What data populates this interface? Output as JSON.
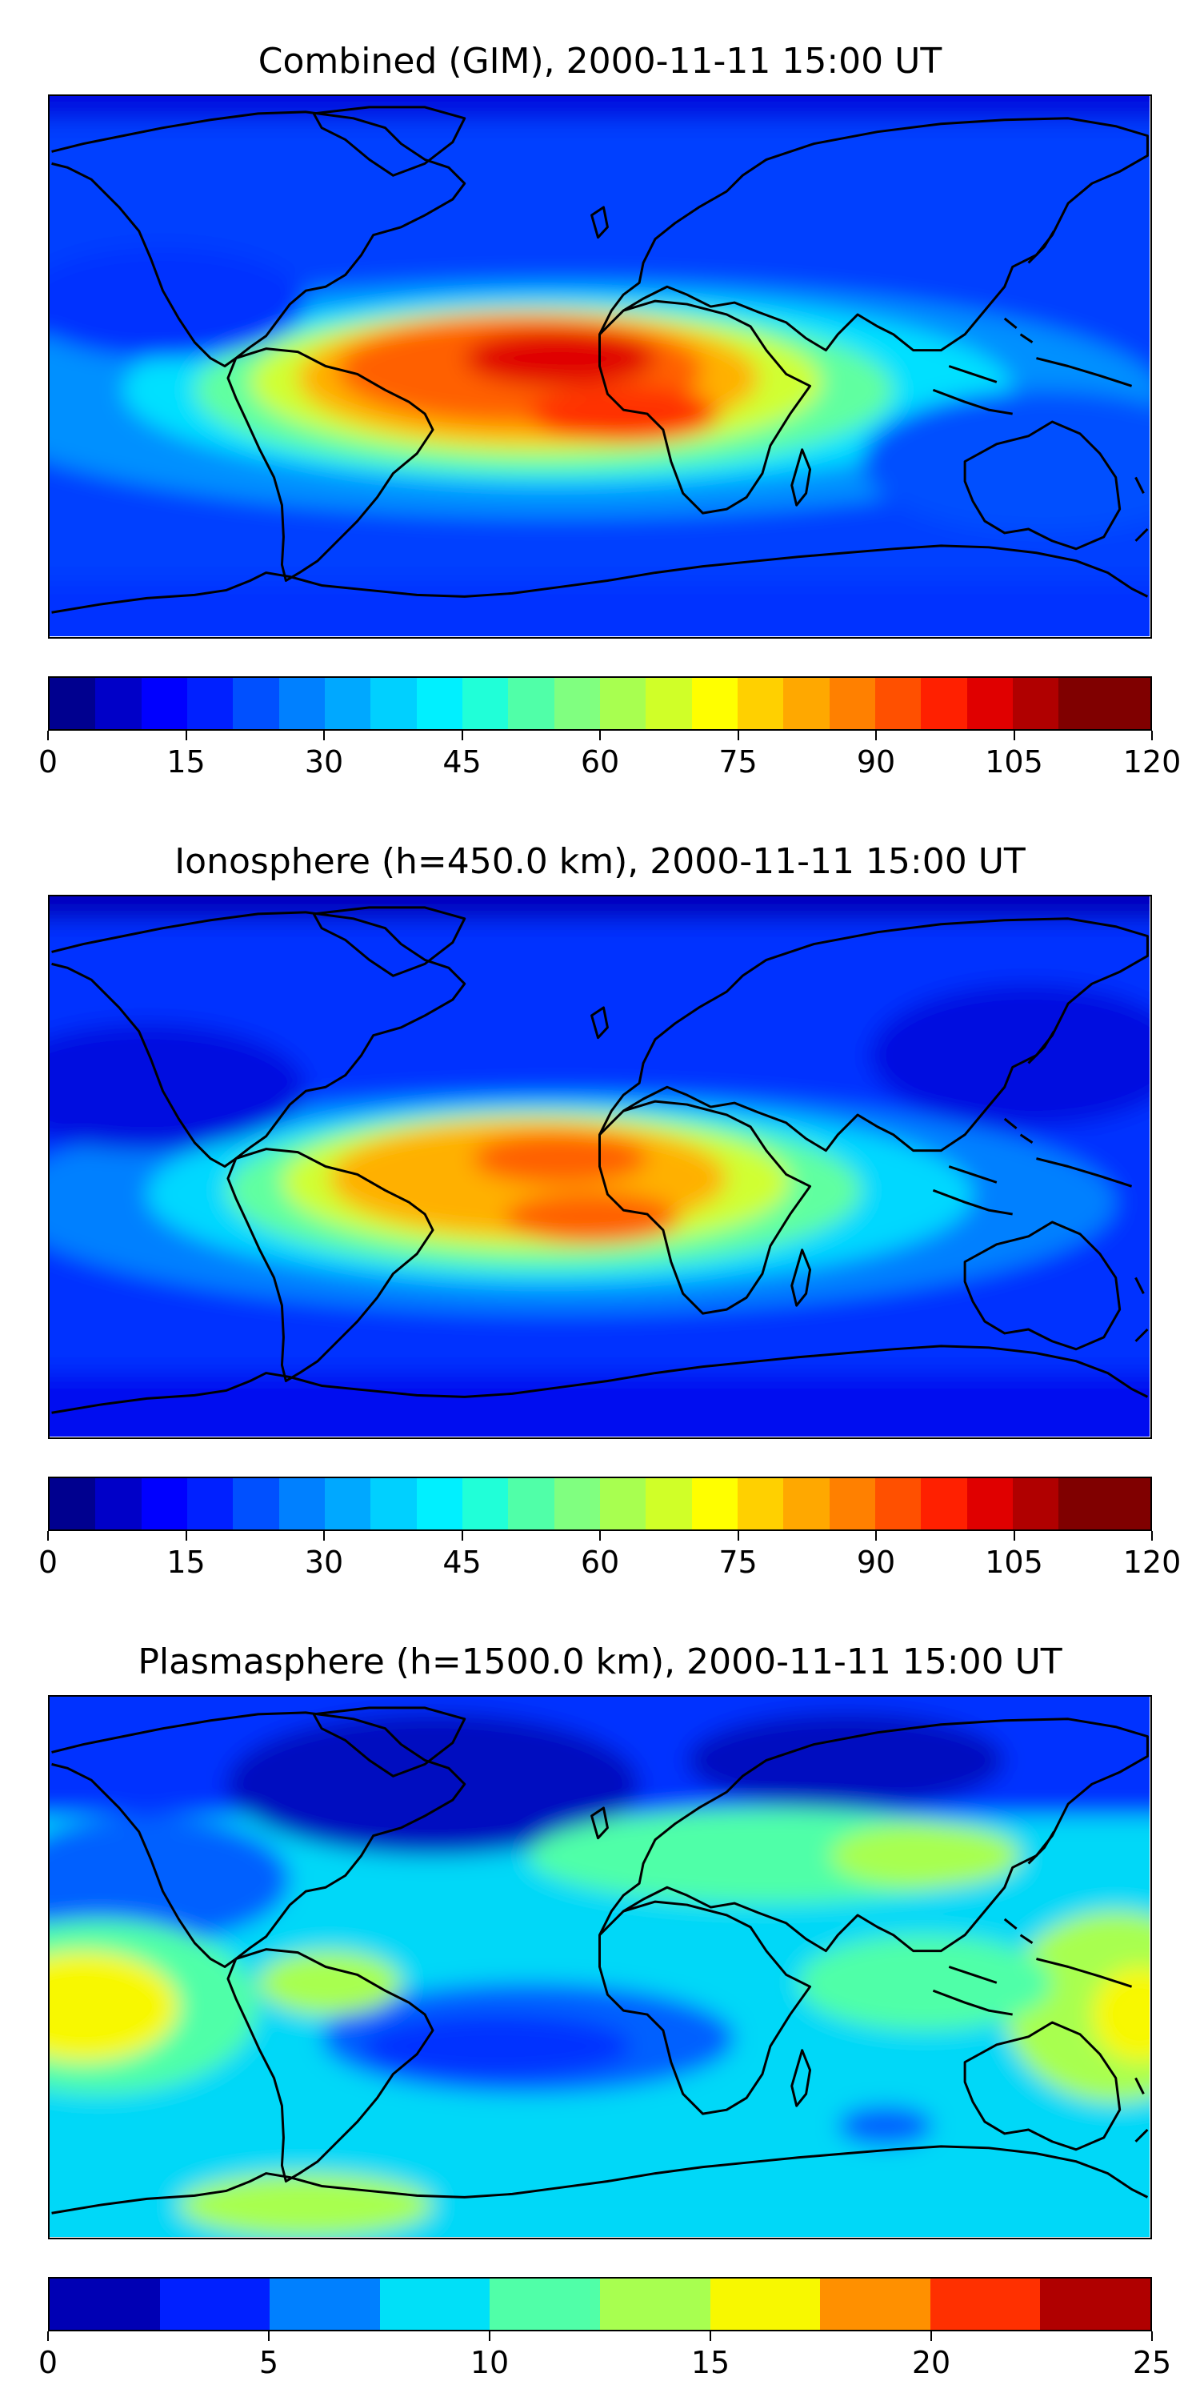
{
  "panels": [
    {
      "title": "Combined (GIM), 2000-11-11 15:00 UT",
      "colorbar": {
        "colors": [
          "#00008f",
          "#0000c8",
          "#0000ff",
          "#0020ff",
          "#0050ff",
          "#0080ff",
          "#00a8ff",
          "#00d0ff",
          "#00f0ff",
          "#20ffd8",
          "#50ffa8",
          "#80ff80",
          "#a8ff50",
          "#d0ff28",
          "#ffff00",
          "#ffd000",
          "#ffa800",
          "#ff8000",
          "#ff5000",
          "#ff2000",
          "#e00000",
          "#b00000",
          "#800000",
          "#800000"
        ],
        "ticks": [
          "0",
          "15",
          "30",
          "45",
          "60",
          "75",
          "90",
          "105",
          "120"
        ]
      }
    },
    {
      "title": "Ionosphere  (h=450.0 km), 2000-11-11 15:00 UT",
      "colorbar": {
        "colors": [
          "#00008f",
          "#0000c8",
          "#0000ff",
          "#0020ff",
          "#0050ff",
          "#0080ff",
          "#00a8ff",
          "#00d0ff",
          "#00f0ff",
          "#20ffd8",
          "#50ffa8",
          "#80ff80",
          "#a8ff50",
          "#d0ff28",
          "#ffff00",
          "#ffd000",
          "#ffa800",
          "#ff8000",
          "#ff5000",
          "#ff2000",
          "#e00000",
          "#b00000",
          "#800000",
          "#800000"
        ],
        "ticks": [
          "0",
          "15",
          "30",
          "45",
          "60",
          "75",
          "90",
          "105",
          "120"
        ]
      }
    },
    {
      "title": "Plasmasphere (h=1500.0 km), 2000-11-11 15:00 UT",
      "colorbar": {
        "colors": [
          "#0000b4",
          "#0020ff",
          "#0080ff",
          "#00e0f8",
          "#50ffa8",
          "#a8ff50",
          "#f8f800",
          "#ff9000",
          "#ff3000",
          "#b00000"
        ],
        "ticks": [
          "0",
          "5",
          "10",
          "15",
          "20",
          "25"
        ]
      }
    }
  ],
  "chart_data": [
    {
      "type": "heatmap",
      "title": "Combined (GIM), 2000-11-11 15:00 UT",
      "projection": "global lat-lon map with coastlines",
      "colorbar_range": [
        0,
        120
      ],
      "colorbar_ticks": [
        0,
        15,
        30,
        45,
        60,
        75,
        90,
        105,
        120
      ],
      "levels": 24,
      "features": [
        "equatorial anomaly maximum ~100-110 over South America and the South Atlantic",
        "low values 5-20 at high latitudes and over the Pacific"
      ]
    },
    {
      "type": "heatmap",
      "title": "Ionosphere  (h=450.0 km), 2000-11-11 15:00 UT",
      "projection": "global lat-lon map with coastlines",
      "colorbar_range": [
        0,
        120
      ],
      "colorbar_ticks": [
        0,
        15,
        30,
        45,
        60,
        75,
        90,
        105,
        120
      ],
      "levels": 24,
      "features": [
        "maximum ~90-100 over South America and the South Atlantic",
        "low values 0-15 at high latitudes"
      ]
    },
    {
      "type": "heatmap",
      "title": "Plasmasphere (h=1500.0 km), 2000-11-11 15:00 UT",
      "projection": "global lat-lon map with coastlines",
      "colorbar_range": [
        0,
        25
      ],
      "colorbar_ticks": [
        0,
        5,
        10,
        15,
        20,
        25
      ],
      "levels": 10,
      "features": [
        "values 2.5-17.5",
        "maxima ~15-17.5 over the eastern Pacific and east of Australia",
        "minima ~2.5-5 over North America and the South Atlantic"
      ]
    }
  ]
}
